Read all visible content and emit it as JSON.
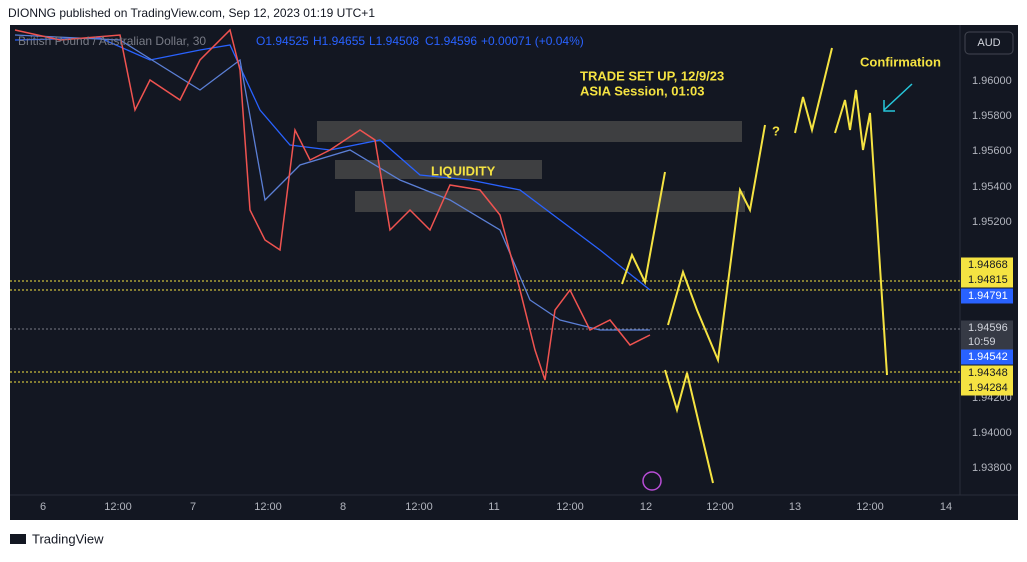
{
  "header": {
    "publisher": "DIONNG published on TradingView.com, Sep 12, 2023 01:19 UTC+1"
  },
  "symbol": {
    "name": "British Pound / Australian Dollar, 30",
    "open": "O1.94525",
    "high": "H1.94655",
    "low": "L1.94508",
    "close": "C1.94596",
    "change": "+0.00071 (+0.04%)",
    "currency": "AUD"
  },
  "annotations": {
    "setup_line1": "TRADE SET UP, 12/9/23",
    "setup_line2": "ASIA Session, 01:03",
    "liquidity": "LIQUIDITY",
    "question": "?",
    "confirmation": "Confirmation"
  },
  "price_axis": [
    "1.96000",
    "1.95800",
    "1.95600",
    "1.95400",
    "1.95200",
    "1.94200",
    "1.94000",
    "1.93800"
  ],
  "price_tags": {
    "t1": "1.94868",
    "t2": "1.94815",
    "t3": "1.94791",
    "t4": "1.94596",
    "countdown": "10:59",
    "t5": "1.94542",
    "t6": "1.94348",
    "t7": "1.94284"
  },
  "time_axis": [
    "6",
    "12:00",
    "7",
    "12:00",
    "8",
    "12:00",
    "11",
    "12:00",
    "12",
    "12:00",
    "13",
    "12:00",
    "14"
  ],
  "footer": {
    "brand": "TradingView"
  }
}
